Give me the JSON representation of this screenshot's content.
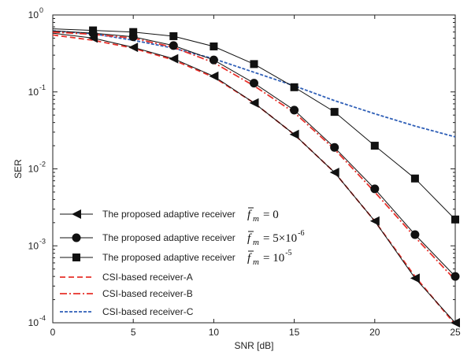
{
  "chart_data": {
    "type": "line",
    "title": "",
    "xlabel": "SNR [dB]",
    "ylabel": "SER",
    "xlim": [
      0,
      25
    ],
    "ylim": [
      0.0001,
      1
    ],
    "yscale": "log",
    "grid": false,
    "legend_position": "bottom-left",
    "x_ticks": [
      "0",
      "5",
      "10",
      "15",
      "20",
      "25"
    ],
    "y_ticks": [
      {
        "value": 1,
        "base": "10",
        "exp": "0"
      },
      {
        "value": 0.1,
        "base": "10",
        "exp": "-1"
      },
      {
        "value": 0.01,
        "base": "10",
        "exp": "-2"
      },
      {
        "value": 0.001,
        "base": "10",
        "exp": "-3"
      },
      {
        "value": 0.0001,
        "base": "10",
        "exp": "-4"
      }
    ],
    "series": [
      {
        "name": "The proposed adaptive receiver",
        "math": {
          "base": "f",
          "sub": "m",
          "rhs": "= 0"
        },
        "color": "#111111",
        "dash": "",
        "marker": "triangle-left",
        "x": [
          0,
          2.5,
          5,
          7.5,
          10,
          12.5,
          15,
          17.5,
          20,
          22.5,
          25
        ],
        "y": [
          0.58,
          0.5,
          0.38,
          0.27,
          0.16,
          0.072,
          0.028,
          0.009,
          0.0021,
          0.00038,
          0.0001
        ]
      },
      {
        "name": "The proposed adaptive receiver",
        "math": {
          "base": "f",
          "sub": "m",
          "rhs": "= 5×10",
          "sup": "-6"
        },
        "color": "#111111",
        "dash": "",
        "marker": "circle",
        "x": [
          0,
          2.5,
          5,
          7.5,
          10,
          12.5,
          15,
          17.5,
          20,
          22.5,
          25
        ],
        "y": [
          0.62,
          0.58,
          0.52,
          0.4,
          0.26,
          0.13,
          0.058,
          0.019,
          0.0055,
          0.0014,
          0.0004
        ]
      },
      {
        "name": "The proposed adaptive receiver",
        "math": {
          "base": "f",
          "sub": "m",
          "rhs": "= 10",
          "sup": "-5"
        },
        "color": "#111111",
        "dash": "",
        "marker": "square",
        "x": [
          0,
          2.5,
          5,
          7.5,
          10,
          12.5,
          15,
          17.5,
          20,
          22.5,
          25
        ],
        "y": [
          0.66,
          0.63,
          0.6,
          0.53,
          0.39,
          0.23,
          0.115,
          0.055,
          0.02,
          0.0075,
          0.0022
        ]
      },
      {
        "name": "CSI-based receiver-A",
        "color": "#e8302a",
        "dash": "7,4",
        "marker": "none",
        "x": [
          0,
          2.5,
          5,
          7.5,
          10,
          12.5,
          15,
          17.5,
          20,
          22.5,
          25
        ],
        "y": [
          0.55,
          0.47,
          0.37,
          0.26,
          0.155,
          0.072,
          0.028,
          0.009,
          0.0021,
          0.0004,
          9.5e-05
        ]
      },
      {
        "name": "CSI-based receiver-B",
        "color": "#e8302a",
        "dash": "9,3,2,3",
        "marker": "none",
        "x": [
          0,
          2.5,
          5,
          7.5,
          10,
          12.5,
          15,
          17.5,
          20,
          22.5,
          25
        ],
        "y": [
          0.6,
          0.56,
          0.5,
          0.38,
          0.24,
          0.12,
          0.054,
          0.018,
          0.005,
          0.0013,
          0.00036
        ]
      },
      {
        "name": "CSI-based receiver-C",
        "color": "#2f5fb7",
        "dash": "4,2",
        "marker": "none",
        "x": [
          0,
          2.5,
          5,
          7.5,
          10,
          12.5,
          15,
          17.5,
          20,
          22.5,
          25
        ],
        "y": [
          0.62,
          0.57,
          0.47,
          0.37,
          0.27,
          0.18,
          0.12,
          0.077,
          0.052,
          0.036,
          0.026
        ]
      }
    ]
  }
}
